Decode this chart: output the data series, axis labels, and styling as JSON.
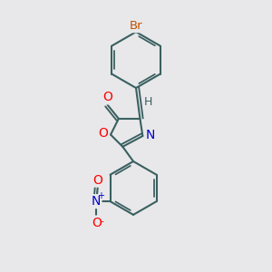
{
  "bg_color": "#e8e8ea",
  "bond_color": "#3a6060",
  "bond_width": 1.5,
  "atom_colors": {
    "Br": "#c05000",
    "O": "#ff0000",
    "N": "#0000cc",
    "H": "#3a6060",
    "C": "#3a6060"
  },
  "fig_width": 3.0,
  "fig_height": 3.0,
  "dpi": 100
}
